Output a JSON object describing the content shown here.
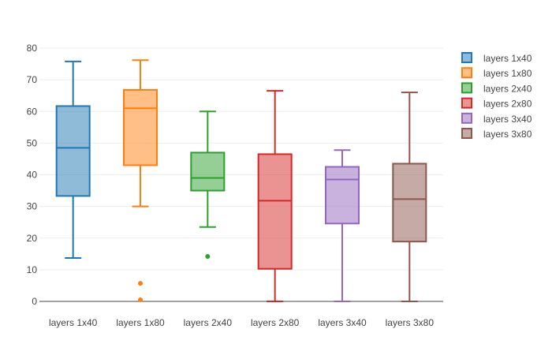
{
  "chart_data": {
    "type": "box",
    "title": "",
    "xlabel": "",
    "ylabel": "",
    "ylim": [
      0,
      80
    ],
    "yticks": [
      0,
      10,
      20,
      30,
      40,
      50,
      60,
      70,
      80
    ],
    "grid": true,
    "legend_position": "top-right",
    "categories": [
      "layers 1x40",
      "layers 1x80",
      "layers 2x40",
      "layers 2x80",
      "layers 3x40",
      "layers 3x80"
    ],
    "series": [
      {
        "name": "layers 1x40",
        "color": "#1f77b4",
        "min": 13.7,
        "q1": 33.3,
        "median": 48.5,
        "q3": 61.7,
        "max": 75.8,
        "outliers": []
      },
      {
        "name": "layers 1x80",
        "color": "#ff7f0e",
        "min": 30.0,
        "q1": 43.0,
        "median": 61.0,
        "q3": 66.8,
        "max": 76.2,
        "outliers": [
          5.7,
          0.5
        ]
      },
      {
        "name": "layers 2x40",
        "color": "#2ca02c",
        "min": 23.5,
        "q1": 35.0,
        "median": 39.0,
        "q3": 47.0,
        "max": 60.0,
        "outliers": [
          14.2
        ]
      },
      {
        "name": "layers 2x80",
        "color": "#d62728",
        "min": 0.0,
        "q1": 10.3,
        "median": 31.8,
        "q3": 46.5,
        "max": 66.5,
        "outliers": []
      },
      {
        "name": "layers 3x40",
        "color": "#9467bd",
        "min": 0.0,
        "q1": 24.6,
        "median": 38.5,
        "q3": 42.5,
        "max": 47.8,
        "outliers": []
      },
      {
        "name": "layers 3x80",
        "color": "#8c564b",
        "min": 0.0,
        "q1": 18.9,
        "median": 32.3,
        "q3": 43.5,
        "max": 66.0,
        "outliers": []
      }
    ]
  }
}
